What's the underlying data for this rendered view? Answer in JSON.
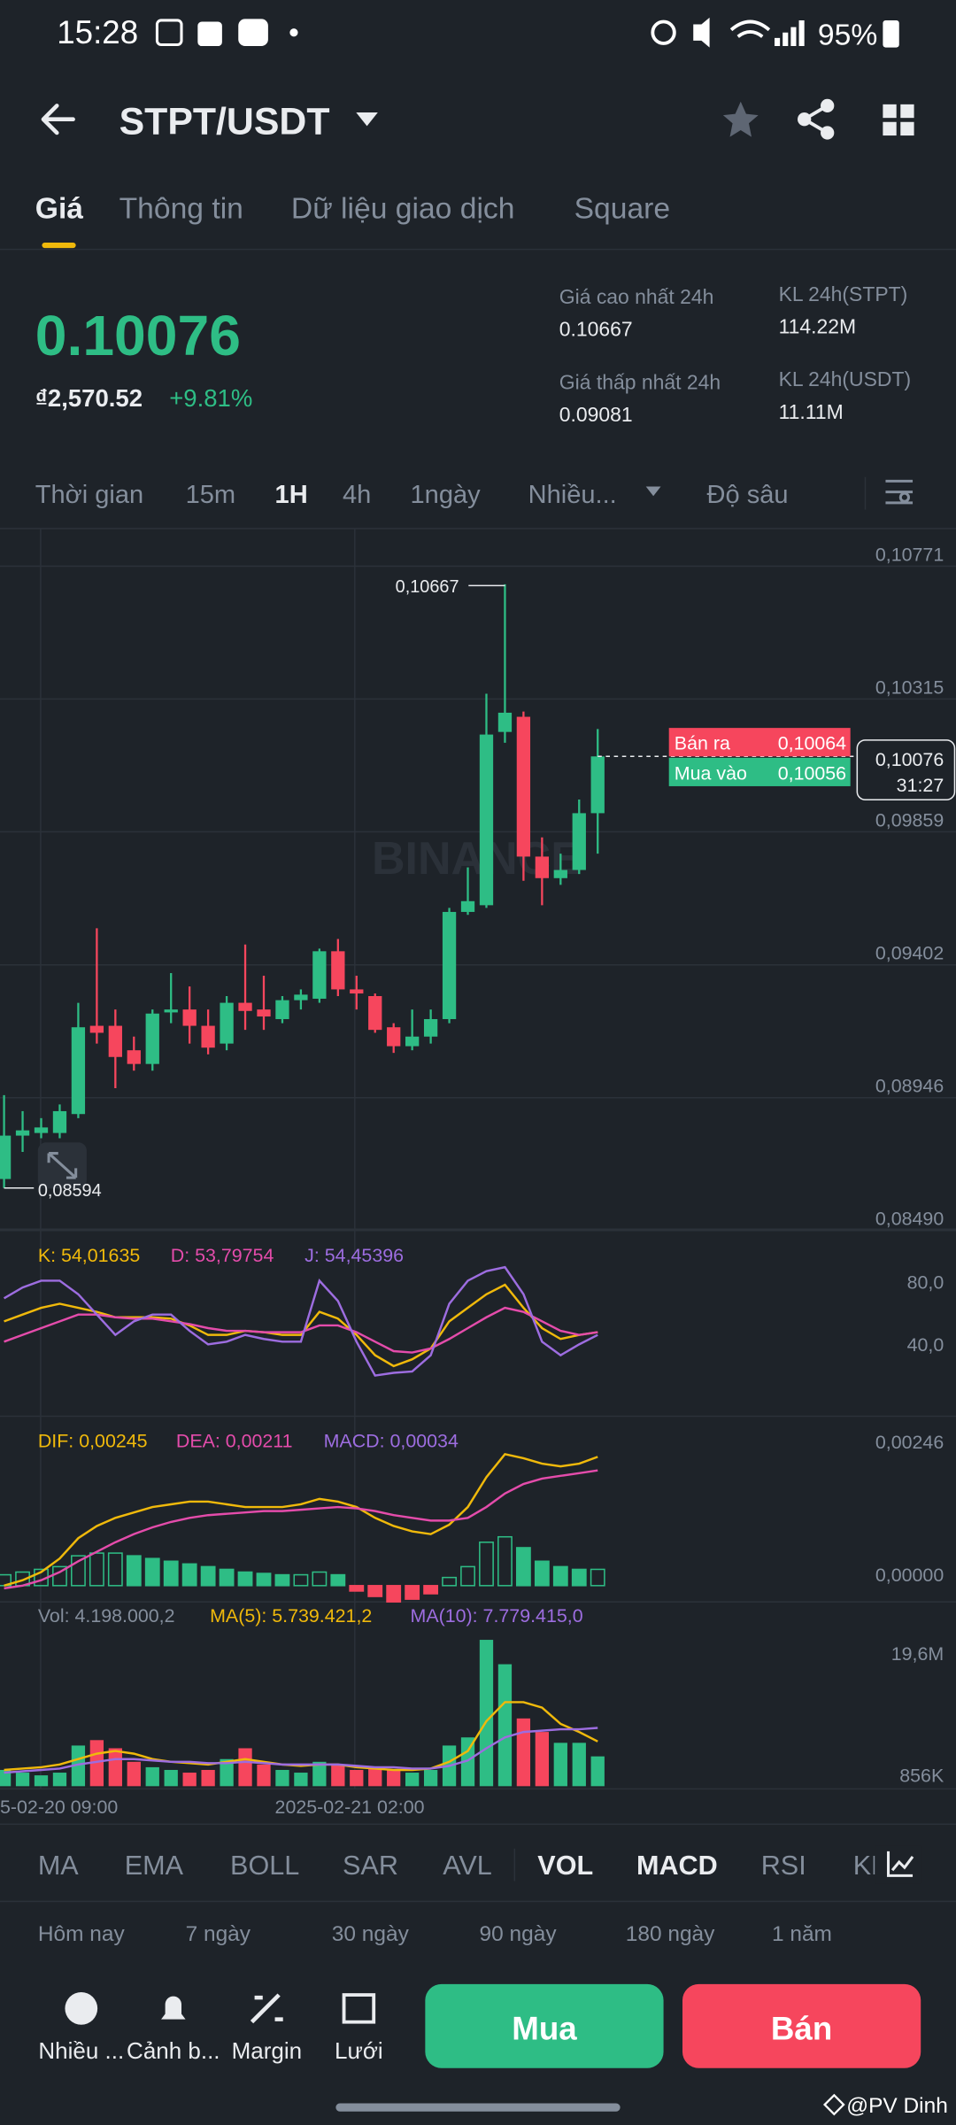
{
  "status_bar": {
    "time": "15:28",
    "battery": "95%"
  },
  "header": {
    "pair": "STPT/USDT"
  },
  "tabs": [
    "Giá",
    "Thông tin",
    "Dữ liệu giao dịch",
    "Square"
  ],
  "price": {
    "last": "0.10076",
    "fiat": "₫2,570.52",
    "change": "+9.81%"
  },
  "stats": [
    {
      "label": "Giá cao nhất 24h",
      "value": "0.10667"
    },
    {
      "label": "KL 24h(STPT)",
      "value": "114.22M"
    },
    {
      "label": "Giá thấp nhất 24h",
      "value": "0.09081"
    },
    {
      "label": "KL 24h(USDT)",
      "value": "11.11M"
    }
  ],
  "intervals": [
    "Thời gian",
    "15m",
    "1H",
    "4h",
    "1ngày",
    "Nhiều...",
    "Độ sâu"
  ],
  "chart": {
    "ylim": [
      0.08462,
      0.10849
    ],
    "price_ticks": [
      {
        "value": 0.10771,
        "label": "0,10771"
      },
      {
        "value": 0.10315,
        "label": "0,10315"
      },
      {
        "value": 0.09859,
        "label": "0,09859"
      },
      {
        "value": 0.09402,
        "label": "0,09402"
      },
      {
        "value": 0.08946,
        "label": "0,08946"
      },
      {
        "value": 0.0849,
        "label": "0,08490"
      }
    ],
    "candles": [
      [
        0.08625,
        0.08913,
        0.08594,
        0.08774
      ],
      [
        0.08774,
        0.08858,
        0.08718,
        0.08792
      ],
      [
        0.08783,
        0.08834,
        0.08765,
        0.08802
      ],
      [
        0.08783,
        0.08881,
        0.08765,
        0.08858
      ],
      [
        0.08848,
        0.0923,
        0.08834,
        0.09146
      ],
      [
        0.09151,
        0.09486,
        0.0909,
        0.09127
      ],
      [
        0.09151,
        0.09207,
        0.08937,
        0.09044
      ],
      [
        0.09067,
        0.09114,
        0.08997,
        0.0902
      ],
      [
        0.0902,
        0.09207,
        0.08997,
        0.09193
      ],
      [
        0.09197,
        0.09332,
        0.0916,
        0.09207
      ],
      [
        0.09207,
        0.09286,
        0.0909,
        0.09151
      ],
      [
        0.09151,
        0.09207,
        0.09053,
        0.09076
      ],
      [
        0.0909,
        0.09253,
        0.09067,
        0.0923
      ],
      [
        0.0923,
        0.0943,
        0.09137,
        0.09202
      ],
      [
        0.09207,
        0.09323,
        0.09137,
        0.09183
      ],
      [
        0.09174,
        0.09253,
        0.0916,
        0.09239
      ],
      [
        0.09239,
        0.09276,
        0.09207,
        0.09258
      ],
      [
        0.09244,
        0.09416,
        0.0923,
        0.09407
      ],
      [
        0.09407,
        0.09449,
        0.09253,
        0.09276
      ],
      [
        0.09276,
        0.09323,
        0.09207,
        0.09262
      ],
      [
        0.09253,
        0.09262,
        0.09127,
        0.09137
      ],
      [
        0.09146,
        0.0916,
        0.09058,
        0.09081
      ],
      [
        0.09081,
        0.09207,
        0.09067,
        0.09114
      ],
      [
        0.09114,
        0.09207,
        0.0909,
        0.09174
      ],
      [
        0.09174,
        0.09556,
        0.0916,
        0.09542
      ],
      [
        0.09542,
        0.09695,
        0.09532,
        0.09579
      ],
      [
        0.09565,
        0.10291,
        0.09556,
        0.10151
      ],
      [
        0.1016,
        0.10667,
        0.10123,
        0.10226
      ],
      [
        0.10212,
        0.1023,
        0.09649,
        0.09732
      ],
      [
        0.09732,
        0.09798,
        0.09565,
        0.09658
      ],
      [
        0.09658,
        0.09742,
        0.09635,
        0.09686
      ],
      [
        0.09686,
        0.09928,
        0.09672,
        0.09881
      ],
      [
        0.09881,
        0.1017,
        0.09742,
        0.10076
      ]
    ],
    "high_label": "0,10667",
    "low_label": "0,08594",
    "ask_label": "Bán ra",
    "ask": "0,10064",
    "bid_label": "Mua vào",
    "bid": "0,10056",
    "current": "0,10076",
    "countdown": "31:27",
    "watermark": "BINANCE"
  },
  "kdj": {
    "k": "K: 54,01635",
    "d": "D: 53,79754",
    "j": "J: 54,45396",
    "axis": [
      "80,0",
      "40,0"
    ]
  },
  "macd": {
    "dif": "DIF: 0,00245",
    "dea": "DEA: 0,00211",
    "macd": "MACD: 0,00034",
    "axis": [
      "0,00246",
      "0,00000"
    ]
  },
  "vol": {
    "vol": "Vol: 4.198.000,2",
    "ma5": "MA(5): 5.739.421,2",
    "ma10": "MA(10): 7.779.415,0",
    "axis": [
      "19,6M",
      "856K"
    ]
  },
  "time_labels": [
    "5-02-20 09:00",
    "2025-02-21 02:00"
  ],
  "indicators": [
    "MA",
    "EMA",
    "BOLL",
    "SAR",
    "AVL",
    "VOL",
    "MACD",
    "RSI",
    "KDJ"
  ],
  "ranges": [
    "Hôm nay",
    "7 ngày",
    "30 ngày",
    "90 ngày",
    "180 ngày",
    "1 năm"
  ],
  "bottom_nav": [
    "Nhiều ...",
    "Cảnh b...",
    "Margin",
    "Lưới"
  ],
  "buy": "Mua",
  "sell": "Bán",
  "watermark": "@PV Dinh"
}
